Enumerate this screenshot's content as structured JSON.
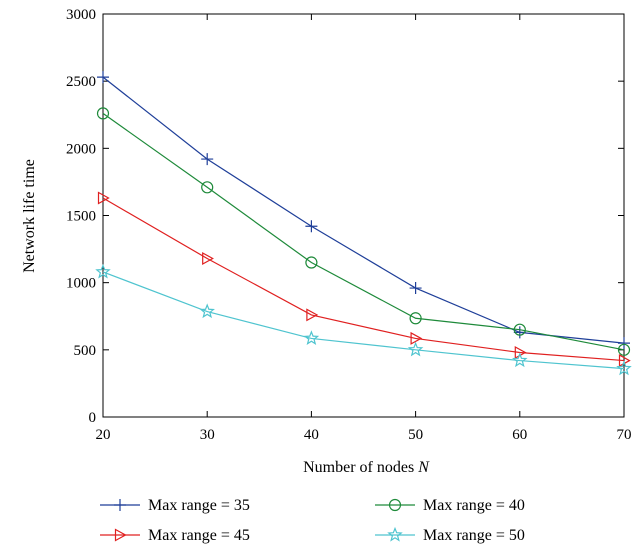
{
  "chart_data": {
    "type": "line",
    "title": "",
    "xlabel": "Number of nodes",
    "xlabel_var": "N",
    "ylabel": "Network life time",
    "xlim": [
      20,
      70
    ],
    "ylim": [
      0,
      3000
    ],
    "xticks": [
      "20",
      "30",
      "40",
      "50",
      "60",
      "70"
    ],
    "yticks": [
      "0",
      "500",
      "1000",
      "1500",
      "2000",
      "2500",
      "3000"
    ],
    "grid": false,
    "legend_position": "bottom",
    "x": [
      20,
      30,
      40,
      50,
      60,
      70
    ],
    "series": [
      {
        "name": "Max range = 35",
        "color": "#1f3f99",
        "marker": "plus",
        "values": [
          2530,
          1920,
          1420,
          960,
          630,
          550
        ]
      },
      {
        "name": "Max range = 40",
        "color": "#1e8a3a",
        "marker": "circle",
        "values": [
          2260,
          1710,
          1150,
          735,
          650,
          500
        ]
      },
      {
        "name": "Max range = 45",
        "color": "#e02020",
        "marker": "triangle-right",
        "values": [
          1630,
          1180,
          760,
          585,
          480,
          420
        ]
      },
      {
        "name": "Max range = 50",
        "color": "#4fc4cf",
        "marker": "star",
        "values": [
          1080,
          785,
          585,
          500,
          420,
          360
        ]
      }
    ]
  }
}
